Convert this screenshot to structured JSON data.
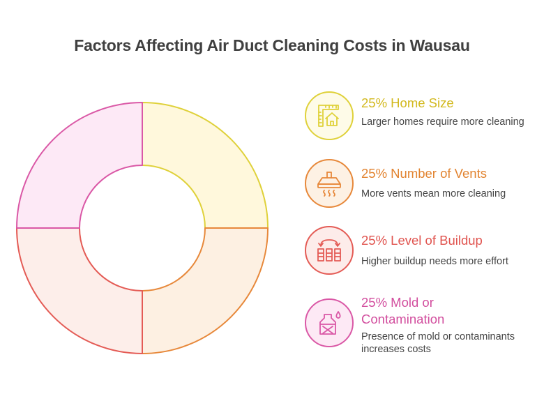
{
  "title": "Factors Affecting Air Duct Cleaning Costs in Wausau",
  "chart_data": {
    "type": "pie",
    "title": "Factors Affecting Air Duct Cleaning Costs in Wausau",
    "categories": [
      "Home Size",
      "Number of Vents",
      "Level of Buildup",
      "Mold or Contamination"
    ],
    "values": [
      25,
      25,
      25,
      25
    ],
    "unit": "%",
    "colors": {
      "stroke": [
        "#dfd13a",
        "#e7883a",
        "#e45b55",
        "#da58a6"
      ],
      "fill": [
        "#fff8dc",
        "#fdf0e2",
        "#fdeeea",
        "#fde9f6"
      ]
    }
  },
  "legend": [
    {
      "percent": "25%",
      "name": "Home Size",
      "heading_line2": "",
      "description": "Larger homes require more cleaning",
      "icon": "house-ruler-icon",
      "color": "#dfd13a",
      "heading_color": "#d2b81d",
      "fill": "#fefbe8"
    },
    {
      "percent": "25%",
      "name": "Number of Vents",
      "heading_line2": "",
      "description": "More vents mean more cleaning",
      "icon": "vent-hood-icon",
      "color": "#e7883a",
      "heading_color": "#e2832f",
      "fill": "#fdf1e4"
    },
    {
      "percent": "25%",
      "name": "Level of Buildup",
      "heading_line2": "",
      "description": "Higher buildup needs more effort",
      "icon": "buildup-rearrange-icon",
      "color": "#e45b55",
      "heading_color": "#e0534e",
      "fill": "#fdecea"
    },
    {
      "percent": "25%",
      "name": "Mold or",
      "heading_line2": "Contamination",
      "description": "Presence of mold or contaminants increases costs",
      "icon": "contaminated-bottle-icon",
      "color": "#da58a6",
      "heading_color": "#d24e9e",
      "fill": "#fde9f5"
    }
  ]
}
